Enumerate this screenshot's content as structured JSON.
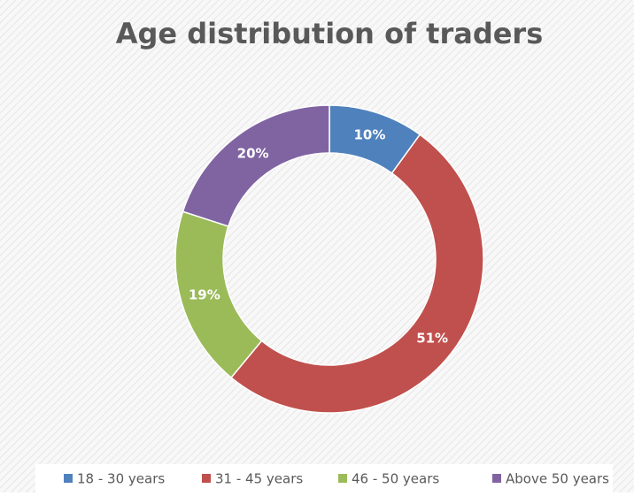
{
  "chart_data": {
    "type": "donut",
    "title": "Age distribution of traders",
    "categories": [
      "18 - 30 years",
      "31 - 45 years",
      "46 - 50 years",
      "Above 50 years"
    ],
    "values": [
      10,
      51,
      19,
      20
    ],
    "value_labels": [
      "10%",
      "51%",
      "19%",
      "20%"
    ],
    "colors": [
      "#4f81bd",
      "#c0504d",
      "#9bbb59",
      "#8064a2"
    ],
    "legend": "bottom"
  }
}
